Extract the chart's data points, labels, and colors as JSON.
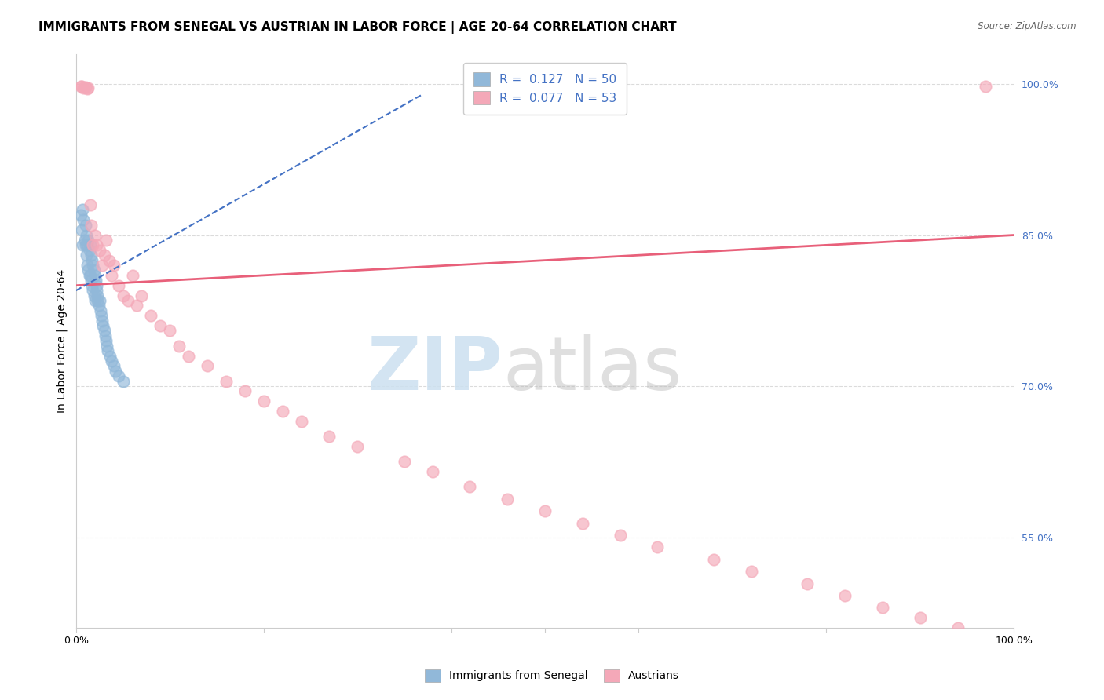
{
  "title": "IMMIGRANTS FROM SENEGAL VS AUSTRIAN IN LABOR FORCE | AGE 20-64 CORRELATION CHART",
  "source": "Source: ZipAtlas.com",
  "ylabel": "In Labor Force | Age 20-64",
  "xlim": [
    0.0,
    1.0
  ],
  "ylim": [
    0.46,
    1.03
  ],
  "right_yticks": [
    0.55,
    0.7,
    0.85,
    1.0
  ],
  "right_yticklabels": [
    "55.0%",
    "70.0%",
    "85.0%",
    "100.0%"
  ],
  "legend_entries": [
    {
      "label": "Immigrants from Senegal",
      "color": "#a8c8e8",
      "R": "0.127",
      "N": "50"
    },
    {
      "label": "Austrians",
      "color": "#f4a8bc",
      "R": "0.077",
      "N": "53"
    }
  ],
  "blue_dots_x": [
    0.005,
    0.006,
    0.007,
    0.007,
    0.008,
    0.009,
    0.01,
    0.01,
    0.011,
    0.011,
    0.012,
    0.012,
    0.013,
    0.013,
    0.014,
    0.014,
    0.015,
    0.015,
    0.016,
    0.016,
    0.017,
    0.017,
    0.018,
    0.018,
    0.019,
    0.019,
    0.02,
    0.02,
    0.021,
    0.022,
    0.022,
    0.023,
    0.023,
    0.024,
    0.025,
    0.026,
    0.027,
    0.028,
    0.029,
    0.03,
    0.031,
    0.032,
    0.033,
    0.034,
    0.036,
    0.038,
    0.04,
    0.042,
    0.045,
    0.05
  ],
  "blue_dots_y": [
    0.87,
    0.855,
    0.875,
    0.84,
    0.865,
    0.845,
    0.86,
    0.84,
    0.85,
    0.83,
    0.84,
    0.82,
    0.845,
    0.815,
    0.835,
    0.81,
    0.84,
    0.81,
    0.83,
    0.805,
    0.825,
    0.8,
    0.82,
    0.795,
    0.815,
    0.79,
    0.81,
    0.785,
    0.805,
    0.8,
    0.795,
    0.79,
    0.785,
    0.78,
    0.785,
    0.775,
    0.77,
    0.765,
    0.76,
    0.755,
    0.75,
    0.745,
    0.74,
    0.735,
    0.73,
    0.725,
    0.72,
    0.715,
    0.71,
    0.705
  ],
  "pink_dots_x": [
    0.005,
    0.006,
    0.008,
    0.01,
    0.012,
    0.013,
    0.015,
    0.016,
    0.018,
    0.02,
    0.022,
    0.025,
    0.028,
    0.03,
    0.032,
    0.035,
    0.038,
    0.04,
    0.045,
    0.05,
    0.055,
    0.06,
    0.065,
    0.07,
    0.08,
    0.09,
    0.1,
    0.11,
    0.12,
    0.14,
    0.16,
    0.18,
    0.2,
    0.22,
    0.24,
    0.27,
    0.3,
    0.35,
    0.38,
    0.42,
    0.46,
    0.5,
    0.54,
    0.58,
    0.62,
    0.68,
    0.72,
    0.78,
    0.82,
    0.86,
    0.9,
    0.94,
    0.97
  ],
  "pink_dots_y": [
    0.998,
    0.998,
    0.996,
    0.997,
    0.995,
    0.996,
    0.88,
    0.86,
    0.84,
    0.85,
    0.84,
    0.835,
    0.82,
    0.83,
    0.845,
    0.825,
    0.81,
    0.82,
    0.8,
    0.79,
    0.785,
    0.81,
    0.78,
    0.79,
    0.77,
    0.76,
    0.755,
    0.74,
    0.73,
    0.72,
    0.705,
    0.695,
    0.685,
    0.675,
    0.665,
    0.65,
    0.64,
    0.625,
    0.615,
    0.6,
    0.588,
    0.576,
    0.564,
    0.552,
    0.54,
    0.528,
    0.516,
    0.504,
    0.492,
    0.48,
    0.47,
    0.46,
    0.998
  ],
  "blue_dot_color": "#91b8d9",
  "pink_dot_color": "#f4a8b8",
  "blue_line_color": "#4472c4",
  "pink_line_color": "#e8607a",
  "grid_color": "#d8d8d8",
  "background_color": "#ffffff",
  "title_fontsize": 11,
  "axis_label_fontsize": 10,
  "tick_fontsize": 9,
  "legend_fontsize": 11,
  "pink_line_start_x": 0.0,
  "pink_line_start_y": 0.8,
  "pink_line_end_x": 1.0,
  "pink_line_end_y": 0.85,
  "blue_line_start_x": 0.0,
  "blue_line_start_y": 0.795,
  "blue_line_end_x": 0.37,
  "blue_line_end_y": 0.99
}
